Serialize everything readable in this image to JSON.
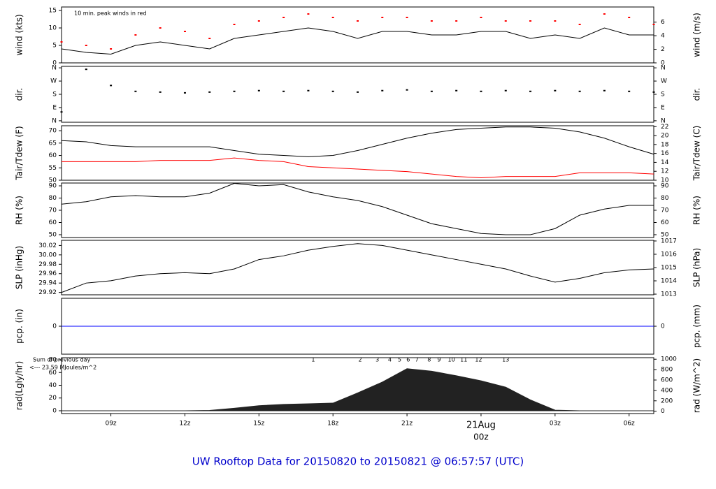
{
  "title": "UW Rooftop Data for 20150820  to  20150821 @ 06:57:57  (UTC)",
  "x": [
    7,
    8,
    9,
    10,
    11,
    12,
    13,
    14,
    15,
    16,
    17,
    18,
    19,
    20,
    21,
    22,
    23,
    24,
    25,
    26,
    27,
    28,
    29,
    30,
    31
  ],
  "xlim": [
    7,
    31
  ],
  "xticks": [
    {
      "value": 9,
      "label": "09z"
    },
    {
      "value": 12,
      "label": "12z"
    },
    {
      "value": 15,
      "label": "15z"
    },
    {
      "value": 18,
      "label": "18z"
    },
    {
      "value": 21,
      "label": "21z"
    },
    {
      "value": 24,
      "label": "00z"
    },
    {
      "value": 27,
      "label": "03z"
    },
    {
      "value": 30,
      "label": "06z"
    }
  ],
  "x_date_label": {
    "value": 24,
    "label": "21Aug",
    "color": "#ff0000"
  },
  "chart_data": [
    {
      "type": "line",
      "ylabel": "wind (kts)",
      "y2label": "wind (m/s)",
      "annotation": "10 min. peak winds in red",
      "ylim": [
        0,
        16
      ],
      "yticks": [
        0,
        5,
        10,
        15
      ],
      "y2lim": [
        0,
        8.23
      ],
      "y2ticks": [
        0,
        2,
        4,
        6
      ],
      "series": [
        {
          "name": "wind",
          "color": "#000000",
          "mode": "line",
          "values": [
            4,
            3,
            2.5,
            5,
            6,
            5,
            4,
            7,
            8,
            9,
            10,
            9,
            7,
            9,
            9,
            8,
            8,
            9,
            9,
            7,
            8,
            7,
            10,
            8,
            8
          ]
        },
        {
          "name": "peak wind",
          "color": "#ff0000",
          "mode": "points",
          "values": [
            6,
            5,
            4,
            8,
            10,
            9,
            7,
            11,
            12,
            13,
            14,
            13,
            12,
            13,
            13,
            12,
            12,
            13,
            12,
            12,
            12,
            11,
            14,
            13,
            11
          ]
        }
      ]
    },
    {
      "type": "scatter",
      "ylabel": "dir.",
      "y2label": "dir.",
      "ylim": [
        -10,
        370
      ],
      "yticks": [
        {
          "value": 0,
          "label": "N"
        },
        {
          "value": 90,
          "label": "E"
        },
        {
          "value": 180,
          "label": "S"
        },
        {
          "value": 270,
          "label": "W"
        },
        {
          "value": 360,
          "label": "N"
        }
      ],
      "y2lim": [
        -10,
        370
      ],
      "y2ticks": [
        {
          "value": 0,
          "label": "N"
        },
        {
          "value": 90,
          "label": "E"
        },
        {
          "value": 180,
          "label": "S"
        },
        {
          "value": 270,
          "label": "W"
        },
        {
          "value": 360,
          "label": "N"
        }
      ],
      "series": [
        {
          "name": "direction",
          "color": "#000000",
          "mode": "points",
          "values": [
            60,
            350,
            240,
            200,
            195,
            190,
            195,
            200,
            205,
            200,
            205,
            200,
            195,
            205,
            210,
            200,
            205,
            200,
            205,
            200,
            205,
            200,
            205,
            200,
            195
          ]
        }
      ]
    },
    {
      "type": "line",
      "ylabel": "Tair/Tdew (F)",
      "y2label": "Tair/Tdew (C)",
      "ylim": [
        50,
        72
      ],
      "yticks": [
        50,
        55,
        60,
        65,
        70
      ],
      "y2lim": [
        10,
        22.2
      ],
      "y2ticks": [
        10,
        12,
        14,
        16,
        18,
        20,
        22
      ],
      "series": [
        {
          "name": "Tair",
          "color": "#000000",
          "mode": "line",
          "values": [
            66,
            65.5,
            64,
            63.5,
            63.5,
            63.5,
            63.5,
            62,
            60.5,
            60,
            59.5,
            60,
            62,
            64.5,
            67,
            69,
            70.5,
            71,
            71.5,
            71.5,
            71,
            69.5,
            67,
            63.5,
            60.5
          ]
        },
        {
          "name": "Tdew",
          "color": "#ff0000",
          "mode": "line",
          "values": [
            57.5,
            57.5,
            57.5,
            57.5,
            58,
            58,
            58,
            59,
            58,
            57.5,
            55.5,
            55,
            54.5,
            54,
            53.5,
            52.5,
            51.5,
            51,
            51.5,
            51.5,
            51.5,
            53,
            53,
            53,
            52.5
          ]
        }
      ]
    },
    {
      "type": "line",
      "ylabel": "RH (%)",
      "y2label": "RH (%)",
      "ylim": [
        47.7,
        92.3
      ],
      "yticks": [
        50,
        60,
        70,
        80,
        90
      ],
      "y2lim": [
        47.7,
        92.3
      ],
      "y2ticks": [
        50,
        60,
        70,
        80,
        90
      ],
      "series": [
        {
          "name": "RH",
          "color": "#000000",
          "mode": "line",
          "values": [
            75,
            77,
            81,
            82,
            81,
            81,
            84,
            92,
            90,
            91,
            85,
            81,
            78,
            73,
            66,
            59,
            55,
            51,
            50,
            50,
            55,
            66,
            71,
            74,
            74
          ]
        }
      ]
    },
    {
      "type": "line",
      "ylabel": "SLP (inHg)",
      "y2label": "SLP (hPa)",
      "ylim": [
        29.915,
        30.031
      ],
      "yticks": [
        29.92,
        29.94,
        29.96,
        29.98,
        {
          "value": 30,
          "label": "30.00"
        },
        30.02
      ],
      "y2lim": [
        1012.95,
        1017.05
      ],
      "y2ticks": [
        1013,
        1014,
        1015,
        1016,
        1017
      ],
      "series": [
        {
          "name": "SLP",
          "color": "#000000",
          "mode": "line",
          "values": [
            29.92,
            29.94,
            29.945,
            29.955,
            29.96,
            29.962,
            29.96,
            29.97,
            29.99,
            29.998,
            30.01,
            30.018,
            30.024,
            30.02,
            30.01,
            30,
            29.99,
            29.98,
            29.97,
            29.955,
            29.942,
            29.95,
            29.962,
            29.968,
            29.97
          ]
        }
      ]
    },
    {
      "type": "line",
      "ylabel": "pcp. (in)",
      "y2label": "pcp. (mm)",
      "ylim": [
        -1,
        1
      ],
      "yticks": [
        0
      ],
      "y2lim": [
        -1,
        1
      ],
      "y2ticks": [
        0
      ],
      "series": [
        {
          "name": "pcp",
          "color": "#0000ff",
          "mode": "line",
          "values": [
            0,
            0,
            0,
            0,
            0,
            0,
            0,
            0,
            0,
            0,
            0,
            0,
            0,
            0,
            0,
            0,
            0,
            0,
            0,
            0,
            0,
            0,
            0,
            0,
            0
          ]
        }
      ]
    },
    {
      "type": "area",
      "ylabel": "rad(Lgly/hr)",
      "y2label": "rad (W/m^2)",
      "ylim": [
        -4.4,
        83.3
      ],
      "yticks": [
        0,
        20,
        40,
        60,
        80
      ],
      "y2lim": [
        -45,
        1030
      ],
      "y2ticks": [
        0,
        200,
        400,
        600,
        800,
        1000
      ],
      "annotations": [
        "Sum of previous day",
        "<--- 23.59 MJoules/m^2"
      ],
      "annotation_color": "#9900cc",
      "markers": {
        "x": [
          17.2,
          19.1,
          19.8,
          20.3,
          20.7,
          21.05,
          21.4,
          21.9,
          22.3,
          22.8,
          23.3,
          23.9,
          25
        ],
        "labels": [
          1,
          2,
          3,
          4,
          5,
          6,
          7,
          8,
          9,
          10,
          11,
          12,
          13
        ]
      },
      "series": [
        {
          "name": "rad",
          "color": "#222222",
          "mode": "area",
          "values": [
            0,
            0,
            0,
            0,
            0,
            0,
            0.5,
            4,
            8,
            10,
            11,
            12,
            28,
            45,
            66,
            62,
            55,
            47,
            37,
            17,
            1,
            0,
            0,
            0,
            0
          ]
        }
      ]
    }
  ]
}
